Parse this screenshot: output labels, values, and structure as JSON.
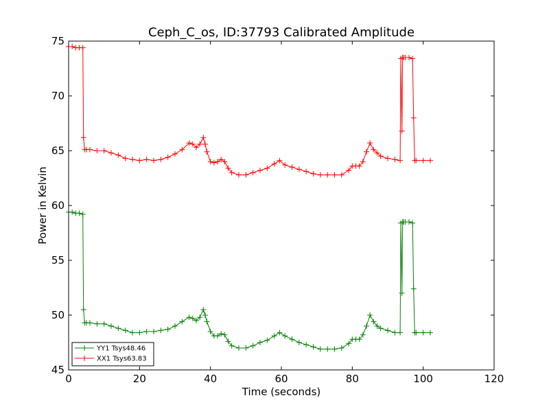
{
  "chart_data": {
    "type": "line",
    "title": "Ceph_C_os, ID:37793 Calibrated Amplitude",
    "xlabel": "Time (seconds)",
    "ylabel": "Power in Kelvin",
    "xlim": [
      0,
      120
    ],
    "ylim": [
      45,
      75
    ],
    "xticks": [
      "0",
      "20",
      "40",
      "60",
      "80",
      "100",
      "120"
    ],
    "yticks": [
      "45",
      "50",
      "55",
      "60",
      "65",
      "70",
      "75"
    ],
    "grid": false,
    "legend_position": "lower-left",
    "marker": "plus",
    "series": [
      {
        "name": "YY1 Tsys48.46",
        "color": "#008000",
        "x": [
          0,
          1,
          2,
          3,
          4,
          4.2,
          4.5,
          5,
          6,
          8,
          10,
          12,
          14,
          16,
          18,
          20,
          22,
          24,
          26,
          28,
          30,
          32,
          34,
          35,
          36,
          37,
          38,
          38.5,
          39,
          40,
          41,
          42,
          43,
          44,
          45,
          46,
          48,
          50,
          52,
          54,
          56,
          58,
          59.5,
          61,
          63,
          65,
          67,
          69,
          71,
          73,
          75,
          77,
          79,
          80,
          81,
          82,
          83,
          84,
          85,
          86,
          87,
          88,
          90,
          92,
          93.5,
          93.7,
          94,
          94.2,
          94.5,
          95,
          96,
          97,
          97.3,
          97.6,
          98,
          100,
          102
        ],
        "values": [
          59.4,
          59.4,
          59.3,
          59.3,
          59.2,
          50.5,
          49.3,
          49.3,
          49.3,
          49.2,
          49.2,
          49.0,
          48.8,
          48.6,
          48.4,
          48.4,
          48.5,
          48.5,
          48.6,
          48.7,
          49.0,
          49.4,
          49.8,
          49.7,
          49.5,
          49.8,
          50.5,
          50.0,
          49.4,
          48.5,
          48.1,
          48.1,
          48.3,
          48.2,
          47.6,
          47.2,
          47.0,
          47.0,
          47.2,
          47.5,
          47.7,
          48.1,
          48.4,
          48.1,
          47.8,
          47.5,
          47.3,
          47.1,
          46.9,
          46.9,
          46.9,
          47.0,
          47.4,
          47.8,
          47.8,
          47.8,
          48.2,
          49.0,
          50.0,
          49.4,
          49.0,
          48.8,
          48.6,
          48.4,
          48.4,
          58.4,
          52.0,
          58.5,
          58.5,
          58.5,
          58.5,
          58.4,
          52.4,
          48.4,
          48.4,
          48.4,
          48.4
        ]
      },
      {
        "name": "XX1 Tsys63.83",
        "color": "#ff0000",
        "x": [
          0,
          1,
          2,
          3,
          4,
          4.2,
          4.5,
          5,
          6,
          8,
          10,
          12,
          14,
          16,
          18,
          20,
          22,
          24,
          26,
          28,
          30,
          32,
          34,
          35,
          36,
          37,
          38,
          38.5,
          39,
          40,
          41,
          42,
          43,
          44,
          45,
          46,
          48,
          50,
          52,
          54,
          56,
          58,
          59.5,
          61,
          63,
          65,
          67,
          69,
          71,
          73,
          75,
          77,
          79,
          80,
          81,
          82,
          83,
          84,
          85,
          86,
          87,
          88,
          90,
          92,
          93.5,
          93.7,
          94,
          94.2,
          94.5,
          95,
          96,
          97,
          97.3,
          97.6,
          98,
          100,
          102
        ],
        "values": [
          74.5,
          74.5,
          74.4,
          74.4,
          74.4,
          66.2,
          65.1,
          65.1,
          65.1,
          65.0,
          65.0,
          64.8,
          64.6,
          64.3,
          64.2,
          64.1,
          64.2,
          64.1,
          64.2,
          64.4,
          64.7,
          65.1,
          65.7,
          65.6,
          65.3,
          65.6,
          66.2,
          65.6,
          64.9,
          64.0,
          63.9,
          64.0,
          64.2,
          64.0,
          63.4,
          63.0,
          62.8,
          62.8,
          63.0,
          63.2,
          63.4,
          63.8,
          64.1,
          63.7,
          63.5,
          63.3,
          63.1,
          62.9,
          62.8,
          62.8,
          62.8,
          62.8,
          63.2,
          63.6,
          63.6,
          63.6,
          64.0,
          64.9,
          65.7,
          65.1,
          64.8,
          64.5,
          64.3,
          64.2,
          64.1,
          73.4,
          66.8,
          73.5,
          73.5,
          73.5,
          73.5,
          73.4,
          68.0,
          64.1,
          64.1,
          64.1,
          64.1
        ]
      }
    ]
  }
}
